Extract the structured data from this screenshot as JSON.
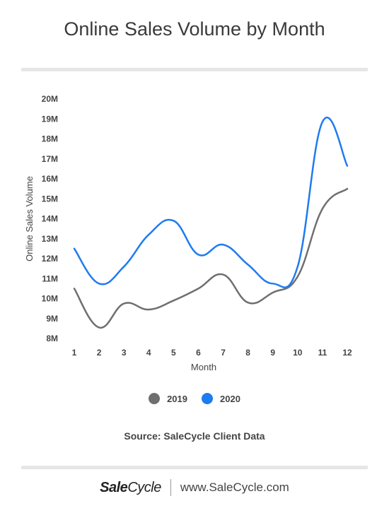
{
  "title": "Online Sales Volume by Month",
  "source": "Source: SaleCycle Client Data",
  "footer": {
    "logo_bold": "Sale",
    "logo_rest": "Cycle",
    "url": "www.SaleCycle.com"
  },
  "chart_data": {
    "type": "line",
    "xlabel": "Month",
    "ylabel": "Online Sales Volume",
    "x": [
      1,
      2,
      3,
      4,
      5,
      6,
      7,
      8,
      9,
      10,
      11,
      12
    ],
    "ylim": [
      8,
      20
    ],
    "yticks": [
      "8M",
      "9M",
      "10M",
      "11M",
      "12M",
      "13M",
      "14M",
      "15M",
      "16M",
      "17M",
      "18M",
      "19M",
      "20M"
    ],
    "series": [
      {
        "name": "2019",
        "color": "#6f6f6f",
        "values": [
          10.5,
          8.55,
          9.75,
          9.45,
          9.9,
          10.5,
          11.2,
          9.8,
          10.3,
          11.1,
          14.5,
          15.5
        ]
      },
      {
        "name": "2020",
        "color": "#1e7bf0",
        "values": [
          12.5,
          10.75,
          11.6,
          13.2,
          13.9,
          12.2,
          12.7,
          11.7,
          10.75,
          11.6,
          18.85,
          16.65
        ]
      }
    ],
    "legend": "bottom-center",
    "grid": false
  }
}
